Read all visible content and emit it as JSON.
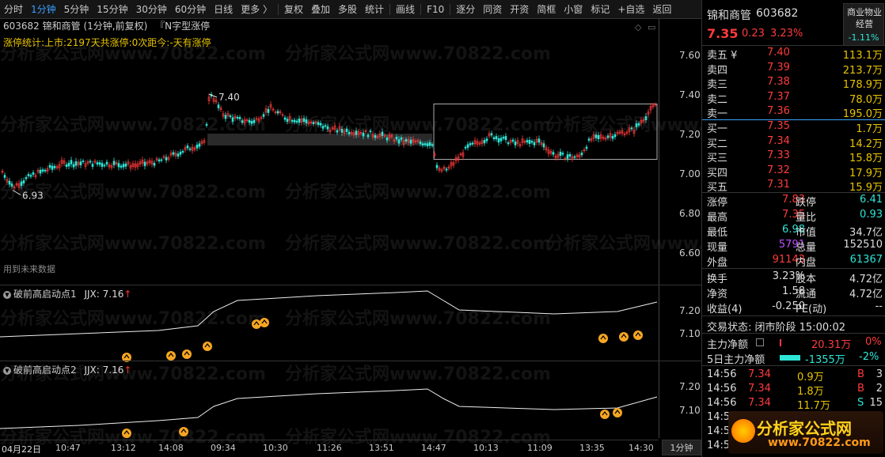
{
  "toolbar": {
    "items": [
      "分时",
      "1分钟",
      "5分钟",
      "15分钟",
      "30分钟",
      "60分钟",
      "日线",
      "更多 〉",
      "复权",
      "叠加",
      "多股",
      "统计",
      "画线",
      "F10",
      "逐分",
      "同资",
      "开资",
      "简框",
      "小窗",
      "标记",
      "+自选",
      "返回"
    ],
    "active": "1分钟"
  },
  "chart": {
    "header": "603682 锦和商管 (1分钟,前复权)",
    "indicator_name": "『N字型涨停",
    "limit_stats": "涨停统计:上市:2197天共涨停:0次距今:-天有涨停",
    "future_note": "用到未来数据",
    "max_label": "7.40",
    "min_label": "6.93",
    "y_ticks": [
      "7.60",
      "7.40",
      "7.20",
      "7.00",
      "6.80",
      "6.60"
    ],
    "watermark": "分析家公式网www.70822.com"
  },
  "indicator1": {
    "title": "破前高启动点1",
    "jjx_label": "JJX: 7.16",
    "arrow": "↑",
    "y_ticks": [
      "7.20",
      "7.10"
    ]
  },
  "indicator2": {
    "title": "破前高启动点2",
    "jjx_label": "JJX: 7.16",
    "arrow": "↑",
    "y_ticks": [
      "7.20",
      "7.10"
    ]
  },
  "time_axis": {
    "labels": [
      "04月22日",
      "10:47",
      "13:12",
      "14:08",
      "09:34",
      "10:30",
      "11:26",
      "13:51",
      "14:47",
      "10:13",
      "11:09",
      "13:35",
      "14:30"
    ],
    "period": "1分钟"
  },
  "quote": {
    "name": "锦和商管",
    "code": "603682",
    "price": "7.35",
    "change": "0.23",
    "change_pct": "3.23%",
    "sector": "商业物业经营",
    "sector_pct": "-1.11%",
    "asks": [
      {
        "label": "卖五 ¥",
        "price": "7.40",
        "vol": "113.1万"
      },
      {
        "label": "卖四",
        "price": "7.39",
        "vol": "213.7万"
      },
      {
        "label": "卖三",
        "price": "7.38",
        "vol": "178.9万"
      },
      {
        "label": "卖二",
        "price": "7.37",
        "vol": "78.0万"
      },
      {
        "label": "卖一",
        "price": "7.36",
        "vol": "195.0万"
      }
    ],
    "bids": [
      {
        "label": "买一",
        "price": "7.35",
        "vol": "1.7万"
      },
      {
        "label": "买二",
        "price": "7.34",
        "vol": "14.2万"
      },
      {
        "label": "买三",
        "price": "7.33",
        "vol": "15.8万"
      },
      {
        "label": "买四",
        "price": "7.32",
        "vol": "17.9万"
      },
      {
        "label": "买五",
        "price": "7.31",
        "vol": "15.9万"
      }
    ],
    "stats": [
      {
        "l1": "涨停",
        "v1": "7.83",
        "c1": "red",
        "l2": "跌停",
        "v2": "6.41",
        "c2": "green"
      },
      {
        "l1": "最高",
        "v1": "7.35",
        "c1": "red",
        "l2": "量比",
        "v2": "0.93",
        "c2": "green"
      },
      {
        "l1": "最低",
        "v1": "6.98",
        "c1": "green",
        "l2": "市值",
        "v2": "34.7亿",
        "c2": "white"
      },
      {
        "l1": "现量",
        "v1": "5791",
        "c1": "purple",
        "l2": "总量",
        "v2": "152510",
        "c2": "white"
      },
      {
        "l1": "外盘",
        "v1": "91143",
        "c1": "red",
        "l2": "内盘",
        "v2": "61367",
        "c2": "green"
      }
    ],
    "stats2": [
      {
        "l1": "换手",
        "v1": "3.23%",
        "l2": "股本",
        "v2": "4.72亿"
      },
      {
        "l1": "净资",
        "v1": "1.58",
        "l2": "流通",
        "v2": "4.72亿"
      },
      {
        "l1": "收益(4)",
        "v1": "-0.250",
        "l2": "PE(动)",
        "v2": "--"
      }
    ],
    "trade_status": "交易状态: 闭市阶段 15:00:02",
    "main_flow_label": "主力净额",
    "main_flow_value": "20.31万",
    "main_flow_pct": "0%",
    "flow5_label": "5日主力净额",
    "flow5_value": "-1355万",
    "flow5_pct": "-2%",
    "ticks": [
      {
        "time": "14:56",
        "price": "7.34",
        "vol": "0.9万",
        "side": "B",
        "n": "3"
      },
      {
        "time": "14:56",
        "price": "7.34",
        "vol": "1.8万",
        "side": "B",
        "n": "2"
      },
      {
        "time": "14:56",
        "price": "7.34",
        "vol": "11.7万",
        "side": "S",
        "n": "15"
      },
      {
        "time": "14:56",
        "price": "",
        "vol": "",
        "side": "",
        "n": ""
      },
      {
        "time": "14:56",
        "price": "",
        "vol": "",
        "side": "",
        "n": ""
      },
      {
        "time": "14:56",
        "price": "",
        "vol": "",
        "side": "",
        "n": ""
      }
    ],
    "brand_name": "分析家公式网",
    "brand_url": "www.70822.com"
  },
  "colors": {
    "up": "#ff3b3b",
    "down": "#2ee6d6",
    "accent": "#3aa0ff",
    "highlight": "#e8c400"
  }
}
